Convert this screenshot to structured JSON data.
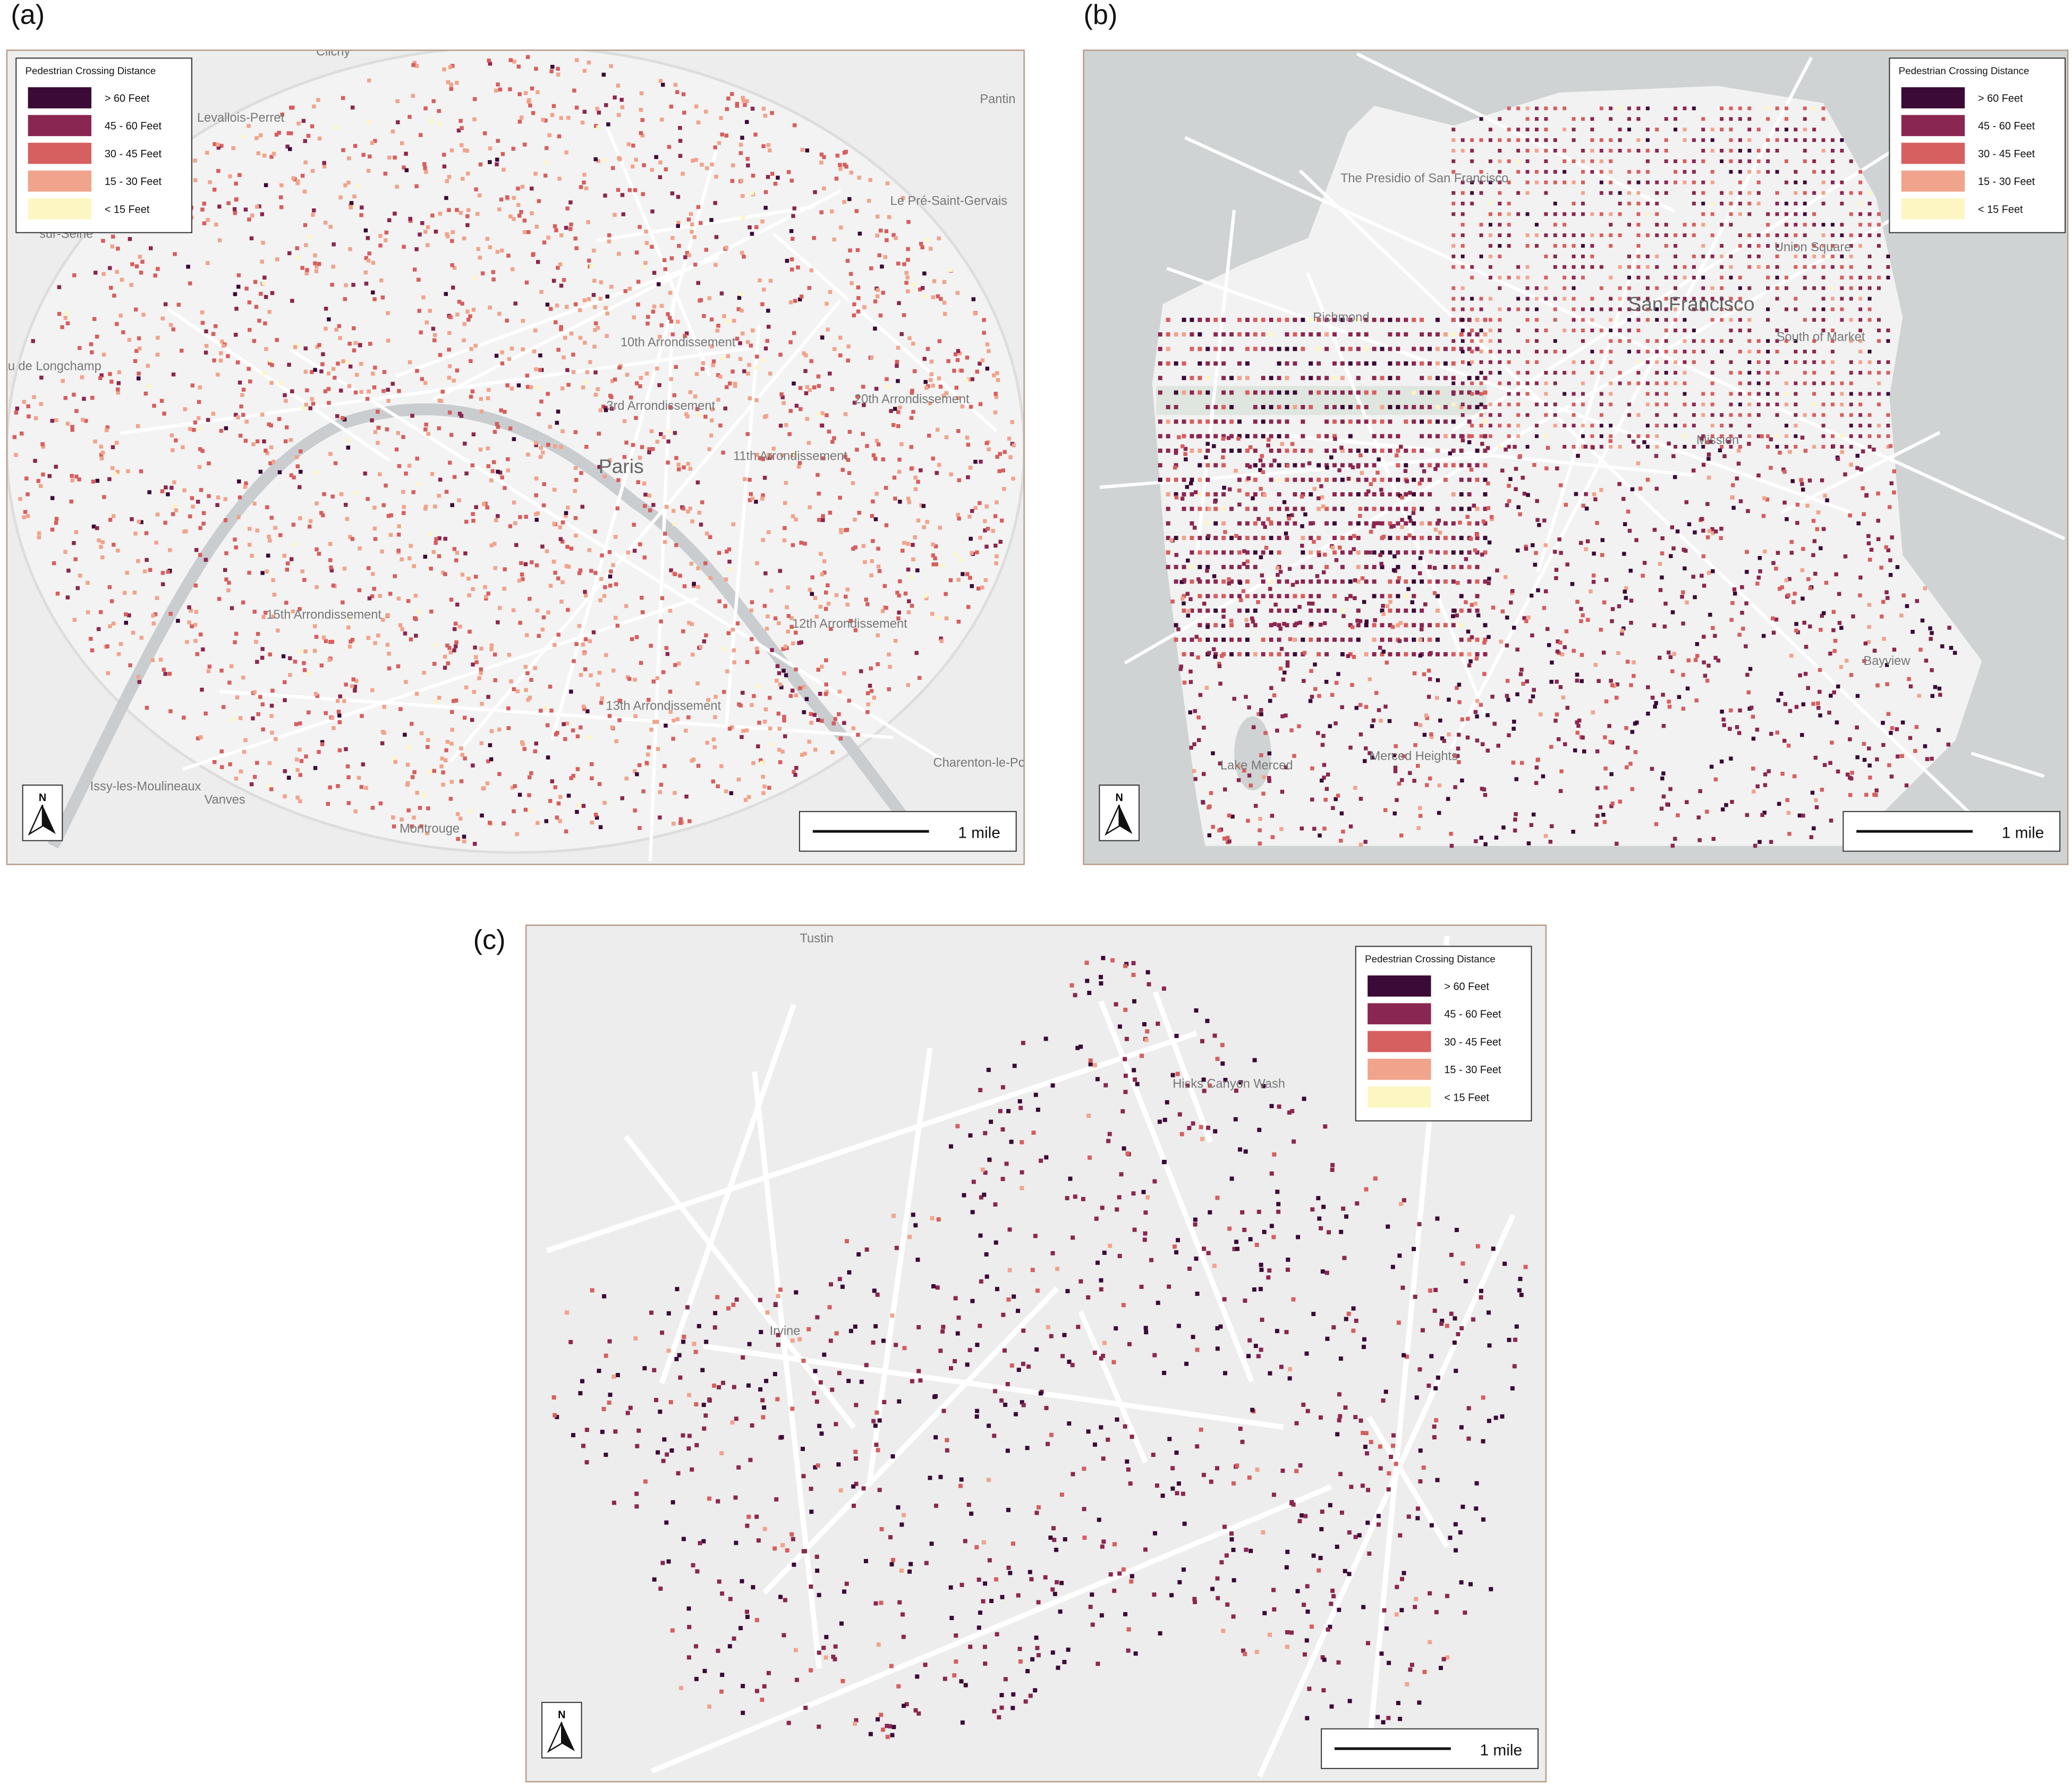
{
  "panels": [
    {
      "label": "(a)",
      "legend": {
        "title": "Pedestrian Crossing Distance",
        "items": [
          {
            "label": "> 60 Feet",
            "color": "#3b0a36"
          },
          {
            "label": "45 - 60 Feet",
            "color": "#8a2750"
          },
          {
            "label": "30 - 45 Feet",
            "color": "#d65f5f"
          },
          {
            "label": "15 - 30 Feet",
            "color": "#f0a48c"
          },
          {
            "label": "< 15 Feet",
            "color": "#fdf6c3"
          }
        ]
      },
      "places": [
        {
          "name": "Clichy"
        },
        {
          "name": "Levallois-Perret"
        },
        {
          "name": "Pantin"
        },
        {
          "name": "Le Pré-Saint-Gervais"
        },
        {
          "name": "sur-Seine"
        },
        {
          "name": "Ruisseau de Longchamp"
        },
        {
          "name": "10th Arrondissement"
        },
        {
          "name": "3rd Arrondissement"
        },
        {
          "name": "20th Arrondissement"
        },
        {
          "name": "11th Arrondissement"
        },
        {
          "name": "Paris"
        },
        {
          "name": "15th Arrondissement"
        },
        {
          "name": "12th Arrondissement"
        },
        {
          "name": "13th Arrondissement"
        },
        {
          "name": "Issy-les-Moulineaux"
        },
        {
          "name": "Vanves"
        },
        {
          "name": "Montrouge"
        },
        {
          "name": "Charenton-le-Pont"
        }
      ],
      "north": "N",
      "scale": "1 mile"
    },
    {
      "label": "(b)",
      "legend": {
        "title": "Pedestrian Crossing Distance",
        "items": [
          {
            "label": "> 60 Feet",
            "color": "#3b0a36"
          },
          {
            "label": "45 - 60 Feet",
            "color": "#8a2750"
          },
          {
            "label": "30 - 45 Feet",
            "color": "#d65f5f"
          },
          {
            "label": "15 - 30 Feet",
            "color": "#f0a48c"
          },
          {
            "label": "< 15 Feet",
            "color": "#fdf6c3"
          }
        ]
      },
      "places": [
        {
          "name": "The Presidio of San Francisco"
        },
        {
          "name": "Richmond"
        },
        {
          "name": "San Francisco"
        },
        {
          "name": "Union Square"
        },
        {
          "name": "South of Market"
        },
        {
          "name": "Mission"
        },
        {
          "name": "Lake Merced"
        },
        {
          "name": "Merced Heights"
        },
        {
          "name": "Bayview"
        }
      ],
      "north": "N",
      "scale": "1 mile"
    },
    {
      "label": "(c)",
      "legend": {
        "title": "Pedestrian Crossing Distance",
        "items": [
          {
            "label": "> 60 Feet",
            "color": "#3b0a36"
          },
          {
            "label": "45 - 60 Feet",
            "color": "#8a2750"
          },
          {
            "label": "30 - 45 Feet",
            "color": "#d65f5f"
          },
          {
            "label": "15 - 30 Feet",
            "color": "#f0a48c"
          },
          {
            "label": "< 15 Feet",
            "color": "#fdf6c3"
          }
        ]
      },
      "places": [
        {
          "name": "Tustin"
        },
        {
          "name": "Irvine"
        },
        {
          "name": "Hicks Canyon Wash"
        }
      ],
      "north": "N",
      "scale": "1 mile"
    }
  ]
}
